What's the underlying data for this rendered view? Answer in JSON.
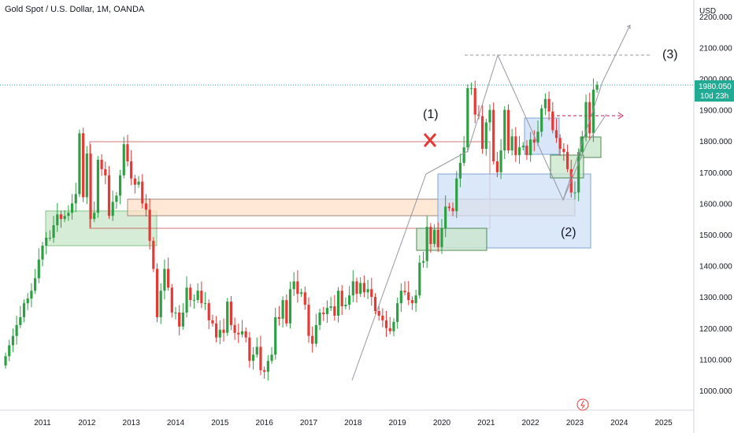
{
  "header": {
    "title": "Gold Spot / U.S. Dollar, 1M, OANDA"
  },
  "price_axis": {
    "currency": "USD",
    "last_price": "1980.050",
    "countdown": "10d 23h"
  },
  "annotations": {
    "label_1": "(1)",
    "label_2": "(2)",
    "label_3": "(3)"
  },
  "colors": {
    "up": "#26a69a",
    "down": "#ef5350",
    "up_body": "#2ea043",
    "down_body": "#e53935",
    "price_line": "#22ab94",
    "projection": "#9598a1",
    "red_line": "#b71c1c",
    "box_green": "#c8e6c9",
    "box_orange": "#ffe0c7",
    "box_blue": "#cfe0f7"
  },
  "chart_data": {
    "type": "candlestick",
    "title": "Gold Spot / U.S. Dollar, 1M, OANDA",
    "xlabel": "",
    "ylabel": "USD",
    "ylim": [
      950,
      2240
    ],
    "x_ticks": [
      "2011",
      "2012",
      "2013",
      "2014",
      "2015",
      "2016",
      "2017",
      "2018",
      "2019",
      "2020",
      "2021",
      "2022",
      "2023",
      "2024",
      "2025"
    ],
    "y_ticks": [
      "1000.000",
      "1100.000",
      "1200.000",
      "1300.000",
      "1400.000",
      "1500.000",
      "1600.000",
      "1700.000",
      "1800.000",
      "1900.000",
      "2000.000",
      "2100.000",
      "2200.000"
    ],
    "closes": [
      1110,
      1145,
      1175,
      1210,
      1235,
      1280,
      1295,
      1320,
      1360,
      1420,
      1465,
      1490,
      1490,
      1530,
      1565,
      1550,
      1560,
      1570,
      1600,
      1630,
      1825,
      1620,
      1760,
      1550,
      1570,
      1740,
      1710,
      1690,
      1560,
      1605,
      1625,
      1690,
      1790,
      1735,
      1680,
      1660,
      1670,
      1600,
      1580,
      1480,
      1390,
      1235,
      1320,
      1390,
      1330,
      1250,
      1250,
      1205,
      1250,
      1330,
      1290,
      1290,
      1320,
      1280,
      1280,
      1225,
      1215,
      1170,
      1195,
      1185,
      1285,
      1210,
      1185,
      1180,
      1190,
      1170,
      1095,
      1115,
      1140,
      1065,
      1060,
      1095,
      1115,
      1235,
      1230,
      1290,
      1215,
      1325,
      1350,
      1310,
      1315,
      1275,
      1175,
      1150,
      1210,
      1250,
      1245,
      1265,
      1270,
      1240,
      1320,
      1270,
      1275,
      1305,
      1350,
      1310,
      1345,
      1315,
      1325,
      1300,
      1255,
      1240,
      1225,
      1200,
      1190,
      1220,
      1280,
      1320,
      1315,
      1290,
      1280,
      1305,
      1410,
      1415,
      1525,
      1470,
      1515,
      1460,
      1520,
      1590,
      1585,
      1575,
      1680,
      1730,
      1780,
      1970,
      1970,
      1885,
      1880,
      1775,
      1860,
      1900,
      1735,
      1700,
      1770,
      1900,
      1770,
      1815,
      1755,
      1780,
      1785,
      1755,
      1805,
      1795,
      1830,
      1905,
      1935,
      1895,
      1835,
      1810,
      1775,
      1765,
      1710,
      1635,
      1635,
      1765,
      1815,
      1925,
      1825,
      1965,
      1980
    ],
    "series": [],
    "zones": [
      "green-left",
      "orange-band",
      "red-rect",
      "green-mid",
      "blue-large",
      "blue-right",
      "green-right",
      "green-small"
    ],
    "arrow_price_levels": [
      2075,
      1885
    ]
  }
}
